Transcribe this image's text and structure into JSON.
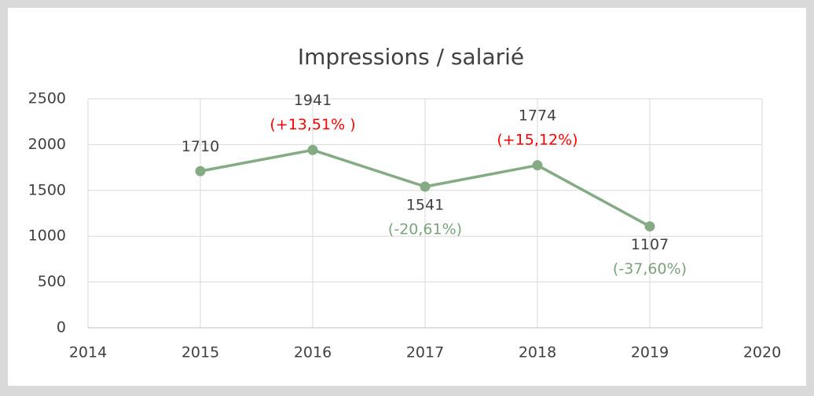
{
  "chart_data": {
    "type": "line",
    "title": "Impressions / salarié",
    "x": [
      2015,
      2016,
      2017,
      2018,
      2019
    ],
    "series": [
      {
        "name": "Impressions / salarié",
        "color": "#84ab84",
        "values": [
          1710,
          1941,
          1541,
          1774,
          1107
        ]
      }
    ],
    "annotations": [
      null,
      {
        "text": "(+13,51% )",
        "color": "#ff0000"
      },
      {
        "text": "(-20,61%)",
        "color": "#7aa37a"
      },
      {
        "text": "(+15,12%)",
        "color": "#ff0000"
      },
      {
        "text": "(-37,60%)",
        "color": "#7aa37a"
      }
    ],
    "xlim": [
      2014,
      2020
    ],
    "xticks": [
      2014,
      2015,
      2016,
      2017,
      2018,
      2019,
      2020
    ],
    "ylim": [
      0,
      2500
    ],
    "yticks": [
      0,
      500,
      1000,
      1500,
      2000,
      2500
    ],
    "grid": true
  }
}
